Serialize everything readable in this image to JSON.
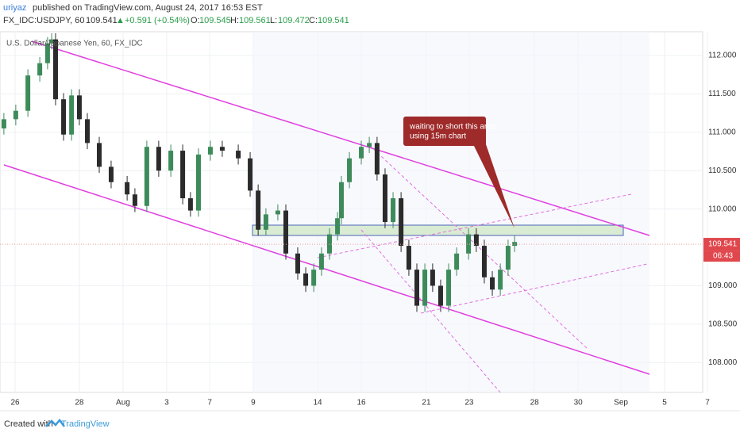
{
  "header": {
    "author": "uriyaz",
    "published": "published on TradingView.com, August 24, 2017 16:53 EST",
    "symbol": "FX_IDC:USDJPY, 60",
    "last": "109.541",
    "arrow": "▲",
    "change": "+0.591 (+0.54%)",
    "o_label": "O:",
    "o": "109.545",
    "h_label": "H:",
    "h": "109.561",
    "l_label": "L:",
    "l": "109.472",
    "c_label": "C:",
    "c": "109.541"
  },
  "chart_data": {
    "type": "candlestick",
    "title": "U.S. Dollar/Japanese Yen, 60, FX_IDC",
    "up_color": "#3d8b5a",
    "down_color": "#2b2b2b",
    "x": [
      0.18,
      0.73,
      1.29,
      1.84,
      2.2,
      2.39,
      2.57,
      2.94,
      3.31,
      3.67,
      4.04,
      4.59,
      5.14,
      5.88,
      6.24,
      6.79,
      7.34,
      7.9,
      8.45,
      8.81,
      9.18,
      9.73,
      10.28,
      11.02,
      11.57,
      11.94,
      12.3,
      12.85,
      13.22,
      13.77,
      14.14,
      14.51,
      14.87,
      15.24,
      15.61,
      15.79,
      16.16,
      16.71,
      17.08,
      17.44,
      17.81,
      18.18,
      18.55,
      18.91,
      19.28,
      19.65,
      20.01,
      20.38,
      20.75,
      21.12,
      21.67,
      22.03,
      22.4,
      22.77,
      23.14,
      23.5,
      23.8
    ],
    "open": [
      111.05,
      111.17,
      111.28,
      111.74,
      111.9,
      112.16,
      112.21,
      111.43,
      110.97,
      111.48,
      111.17,
      110.86,
      110.55,
      110.35,
      110.19,
      110.04,
      110.81,
      110.5,
      110.76,
      110.14,
      109.98,
      110.71,
      110.81,
      110.76,
      110.66,
      110.24,
      109.73,
      109.93,
      109.98,
      109.42,
      109.16,
      109.0,
      109.21,
      109.42,
      109.67,
      109.88,
      110.35,
      110.66,
      110.81,
      110.86,
      110.45,
      109.83,
      110.14,
      109.52,
      109.21,
      108.74,
      109.21,
      109.0,
      108.74,
      109.21,
      109.42,
      109.67,
      109.52,
      109.11,
      108.95,
      109.21,
      109.52
    ],
    "high": [
      111.25,
      111.36,
      111.82,
      111.98,
      112.24,
      112.29,
      112.29,
      111.51,
      111.56,
      111.56,
      111.25,
      110.94,
      110.63,
      110.43,
      110.27,
      110.89,
      110.89,
      110.84,
      110.84,
      110.22,
      110.79,
      110.89,
      110.89,
      110.84,
      110.74,
      110.32,
      110.01,
      110.06,
      110.06,
      109.5,
      109.24,
      109.29,
      109.5,
      109.75,
      109.96,
      110.43,
      110.74,
      110.89,
      110.94,
      110.94,
      110.53,
      110.22,
      110.22,
      109.6,
      109.29,
      109.29,
      109.29,
      109.08,
      109.29,
      109.5,
      109.75,
      109.75,
      109.6,
      109.19,
      109.29,
      109.6,
      109.65
    ],
    "low": [
      110.97,
      111.09,
      111.2,
      111.66,
      111.82,
      112.08,
      111.35,
      110.89,
      110.89,
      111.09,
      110.78,
      110.47,
      110.27,
      110.11,
      109.96,
      109.96,
      110.42,
      110.42,
      110.06,
      109.9,
      109.9,
      110.63,
      110.68,
      110.58,
      110.16,
      109.65,
      109.65,
      109.85,
      109.34,
      109.08,
      108.92,
      108.92,
      109.13,
      109.34,
      109.59,
      109.8,
      110.27,
      110.58,
      110.73,
      110.37,
      109.75,
      109.75,
      109.44,
      109.13,
      108.66,
      108.66,
      108.92,
      108.66,
      108.66,
      109.13,
      109.34,
      109.44,
      109.03,
      108.87,
      108.87,
      109.13,
      109.44
    ],
    "close": [
      111.17,
      111.28,
      111.74,
      111.9,
      112.16,
      112.21,
      111.43,
      110.97,
      111.48,
      111.17,
      110.86,
      110.55,
      110.35,
      110.19,
      110.04,
      110.81,
      110.5,
      110.76,
      110.14,
      109.98,
      110.71,
      110.81,
      110.76,
      110.66,
      110.24,
      109.73,
      109.93,
      109.98,
      109.42,
      109.16,
      109.0,
      109.21,
      109.42,
      109.67,
      109.88,
      110.35,
      110.66,
      110.81,
      110.86,
      110.45,
      109.83,
      110.14,
      109.52,
      109.21,
      108.74,
      109.21,
      109.0,
      108.74,
      109.21,
      109.42,
      109.67,
      109.52,
      109.11,
      108.95,
      109.21,
      109.52,
      109.57
    ],
    "xlim": [
      0,
      32.5
    ],
    "xticks": [
      {
        "value": 0.7,
        "label": "26"
      },
      {
        "value": 3.67,
        "label": "28"
      },
      {
        "value": 5.69,
        "label": "Aug"
      },
      {
        "value": 7.71,
        "label": "3"
      },
      {
        "value": 9.7,
        "label": "7"
      },
      {
        "value": 11.71,
        "label": "9"
      },
      {
        "value": 14.69,
        "label": "14"
      },
      {
        "value": 16.71,
        "label": "16"
      },
      {
        "value": 19.72,
        "label": "21"
      },
      {
        "value": 21.7,
        "label": "23"
      },
      {
        "value": 24.72,
        "label": "28"
      },
      {
        "value": 26.74,
        "label": "30"
      },
      {
        "value": 28.72,
        "label": "Sep"
      },
      {
        "value": 30.74,
        "label": "5"
      },
      {
        "value": 32.72,
        "label": "7"
      }
    ],
    "ylim": [
      107.61,
      112.31
    ],
    "yticks": [
      {
        "value": 112,
        "label": "112.000"
      },
      {
        "value": 111.5,
        "label": "111.500"
      },
      {
        "value": 111,
        "label": "111.000"
      },
      {
        "value": 110.5,
        "label": "110.500"
      },
      {
        "value": 110,
        "label": "110.000"
      },
      {
        "value": 109,
        "label": "109.000"
      },
      {
        "value": 108.5,
        "label": "108.500"
      },
      {
        "value": 108,
        "label": "108.000"
      }
    ],
    "grid": true,
    "last_price": {
      "value": 109.541,
      "label": "109.541"
    },
    "countdown": "06:43",
    "annotation": [
      "waiting to short this area",
      "using 15m chart"
    ]
  },
  "footer": {
    "created": "Created with",
    "brand": "TradingView"
  }
}
